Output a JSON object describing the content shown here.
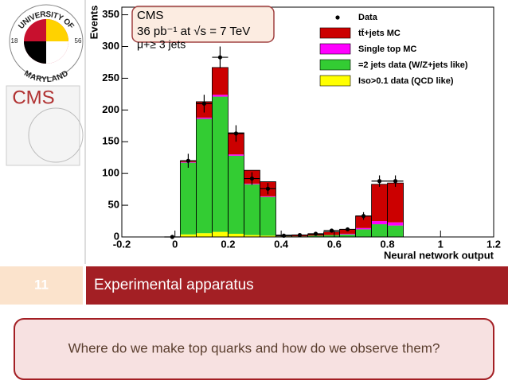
{
  "logos": {
    "umd_top": "UNIVERSITY OF",
    "umd_bottom": "MARYLAND",
    "umd_year_left": "18",
    "umd_year_right": "56",
    "cms": "CMS"
  },
  "chart_data": {
    "type": "stacked-histogram",
    "title": "CMS",
    "subtitle": "36 pb⁻¹ at √s = 7 TeV",
    "annotation": "μ+≥ 3 jets",
    "y_label": "Events",
    "x_label": "Neural network output",
    "bins": [
      -0.04,
      0.02,
      0.08,
      0.14,
      0.2,
      0.26,
      0.32,
      0.38,
      0.44,
      0.5,
      0.56,
      0.62,
      0.68,
      0.74,
      0.8,
      0.86
    ],
    "series": [
      {
        "name": "Iso>0.1 data (QCD like)",
        "color": "#ffff00",
        "values": [
          0,
          4,
          6,
          8,
          5,
          3,
          2,
          0,
          0,
          0,
          0,
          0,
          0,
          0,
          0
        ]
      },
      {
        "name": "=2 jets data (W/Z+jets like)",
        "color": "#33cc33",
        "values": [
          0,
          113,
          180,
          213,
          123,
          80,
          61,
          1,
          1,
          2,
          3,
          4,
          12,
          20,
          18
        ]
      },
      {
        "name": "Single top MC",
        "color": "#ff00ff",
        "values": [
          0,
          1,
          2,
          3,
          2,
          1,
          1,
          0,
          0,
          0,
          0,
          1,
          2,
          5,
          5
        ]
      },
      {
        "name": "tt̄+jets MC",
        "color": "#cc0000",
        "values": [
          0,
          2,
          25,
          43,
          34,
          21,
          23,
          2,
          2,
          2,
          5,
          7,
          19,
          58,
          62
        ]
      }
    ],
    "data": {
      "name": "Data",
      "color": "#000000",
      "values": [
        0,
        120,
        210,
        283,
        163,
        92,
        76,
        2,
        3,
        5,
        10,
        12,
        33,
        88,
        88
      ],
      "errors": [
        0,
        11,
        14,
        17,
        13,
        10,
        9,
        1,
        2,
        2,
        3,
        3,
        6,
        9,
        9
      ]
    },
    "xlim": [
      -0.2,
      1.2
    ],
    "xticks": [
      -0.2,
      0,
      0.2,
      0.4,
      0.6,
      0.8,
      1,
      1.2
    ],
    "ylim": [
      0,
      362
    ],
    "yticks": [
      0,
      50,
      100,
      150,
      200,
      250,
      300,
      350
    ],
    "grid": false,
    "legend": "top-right"
  },
  "slide": {
    "number": "11",
    "title": "Experimental apparatus",
    "question": "Where do we make top quarks and how do we observe them?"
  }
}
